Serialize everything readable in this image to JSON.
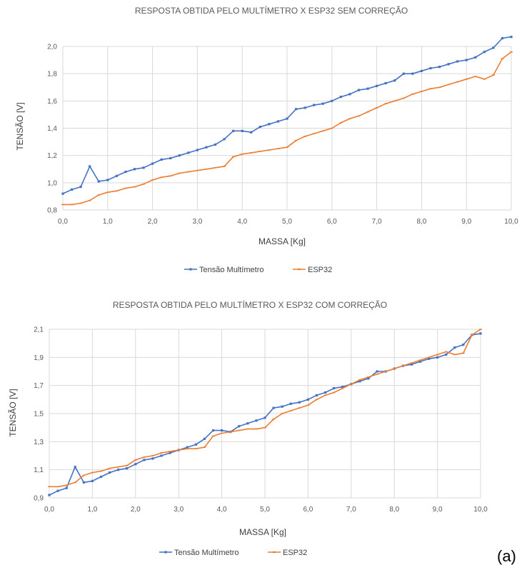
{
  "caption": "(a)",
  "chart_data": [
    {
      "type": "line",
      "title": "RESPOSTA OBTIDA PELO MULTÍMETRO X ESP32 SEM CORREÇÃO",
      "xlabel": "MASSA [Kg]",
      "ylabel": "TENSÃO [V]",
      "xlim": [
        0,
        10
      ],
      "ylim": [
        0.8,
        2.0
      ],
      "xticks": [
        "0,0",
        "1,0",
        "2,0",
        "3,0",
        "4,0",
        "5,0",
        "6,0",
        "7,0",
        "8,0",
        "9,0",
        "10,0"
      ],
      "yticks": [
        "0,8",
        "1,0",
        "1,2",
        "1,4",
        "1,6",
        "1,8",
        "2,0"
      ],
      "grid": true,
      "legend": "bottom",
      "x": [
        0,
        0.2,
        0.4,
        0.6,
        0.8,
        1.0,
        1.2,
        1.4,
        1.6,
        1.8,
        2.0,
        2.2,
        2.4,
        2.6,
        2.8,
        3.0,
        3.2,
        3.4,
        3.6,
        3.8,
        4.0,
        4.2,
        4.4,
        4.6,
        4.8,
        5.0,
        5.2,
        5.4,
        5.6,
        5.8,
        6.0,
        6.2,
        6.4,
        6.6,
        6.8,
        7.0,
        7.2,
        7.4,
        7.6,
        7.8,
        8.0,
        8.2,
        8.4,
        8.6,
        8.8,
        9.0,
        9.2,
        9.4,
        9.6,
        9.8,
        10.0
      ],
      "series": [
        {
          "name": "Tensão Multímetro",
          "color": "#4472c4",
          "values": [
            0.92,
            0.95,
            0.97,
            1.12,
            1.01,
            1.02,
            1.05,
            1.08,
            1.1,
            1.11,
            1.14,
            1.17,
            1.18,
            1.2,
            1.22,
            1.24,
            1.26,
            1.28,
            1.32,
            1.38,
            1.38,
            1.37,
            1.41,
            1.43,
            1.45,
            1.47,
            1.54,
            1.55,
            1.57,
            1.58,
            1.6,
            1.63,
            1.65,
            1.68,
            1.69,
            1.71,
            1.73,
            1.75,
            1.8,
            1.8,
            1.82,
            1.84,
            1.85,
            1.87,
            1.89,
            1.9,
            1.92,
            1.96,
            1.99,
            2.06,
            2.07
          ]
        },
        {
          "name": "ESP32",
          "color": "#ed7d31",
          "values": [
            0.84,
            0.84,
            0.85,
            0.87,
            0.91,
            0.93,
            0.94,
            0.96,
            0.97,
            0.99,
            1.02,
            1.04,
            1.05,
            1.07,
            1.08,
            1.09,
            1.1,
            1.11,
            1.12,
            1.19,
            1.21,
            1.22,
            1.23,
            1.24,
            1.25,
            1.26,
            1.31,
            1.34,
            1.36,
            1.38,
            1.4,
            1.44,
            1.47,
            1.49,
            1.52,
            1.55,
            1.58,
            1.6,
            1.62,
            1.65,
            1.67,
            1.69,
            1.7,
            1.72,
            1.74,
            1.76,
            1.78,
            1.76,
            1.79,
            1.91,
            1.96
          ]
        }
      ]
    },
    {
      "type": "line",
      "title": "RESPOSTA OBTIDA PELO MULTÍMETRO X ESP32 COM CORREÇÃO",
      "xlabel": "MASSA [Kg]",
      "ylabel": "TENSÃO [V]",
      "xlim": [
        0,
        10
      ],
      "ylim": [
        0.9,
        2.1
      ],
      "xticks": [
        "0,0",
        "1,0",
        "2,0",
        "3,0",
        "4,0",
        "5,0",
        "6,0",
        "7,0",
        "8,0",
        "9,0",
        "10,0"
      ],
      "yticks": [
        "0,9",
        "1,1",
        "1,3",
        "1,5",
        "1,7",
        "1,9",
        "2,1"
      ],
      "grid": true,
      "legend": "bottom",
      "x": [
        0,
        0.2,
        0.4,
        0.6,
        0.8,
        1.0,
        1.2,
        1.4,
        1.6,
        1.8,
        2.0,
        2.2,
        2.4,
        2.6,
        2.8,
        3.0,
        3.2,
        3.4,
        3.6,
        3.8,
        4.0,
        4.2,
        4.4,
        4.6,
        4.8,
        5.0,
        5.2,
        5.4,
        5.6,
        5.8,
        6.0,
        6.2,
        6.4,
        6.6,
        6.8,
        7.0,
        7.2,
        7.4,
        7.6,
        7.8,
        8.0,
        8.2,
        8.4,
        8.6,
        8.8,
        9.0,
        9.2,
        9.4,
        9.6,
        9.8,
        10.0
      ],
      "series": [
        {
          "name": "Tensão Multímetro",
          "color": "#4472c4",
          "values": [
            0.92,
            0.95,
            0.97,
            1.12,
            1.01,
            1.02,
            1.05,
            1.08,
            1.1,
            1.11,
            1.14,
            1.17,
            1.18,
            1.2,
            1.22,
            1.24,
            1.26,
            1.28,
            1.32,
            1.38,
            1.38,
            1.37,
            1.41,
            1.43,
            1.45,
            1.47,
            1.54,
            1.55,
            1.57,
            1.58,
            1.6,
            1.63,
            1.65,
            1.68,
            1.69,
            1.71,
            1.73,
            1.75,
            1.8,
            1.8,
            1.82,
            1.84,
            1.85,
            1.87,
            1.89,
            1.9,
            1.92,
            1.97,
            1.99,
            2.06,
            2.07
          ]
        },
        {
          "name": "ESP32",
          "color": "#ed7d31",
          "values": [
            0.98,
            0.98,
            0.99,
            1.01,
            1.06,
            1.08,
            1.09,
            1.11,
            1.12,
            1.13,
            1.17,
            1.19,
            1.2,
            1.22,
            1.23,
            1.24,
            1.25,
            1.25,
            1.26,
            1.34,
            1.36,
            1.37,
            1.38,
            1.39,
            1.39,
            1.4,
            1.46,
            1.5,
            1.52,
            1.54,
            1.56,
            1.6,
            1.63,
            1.65,
            1.68,
            1.71,
            1.74,
            1.76,
            1.78,
            1.8,
            1.82,
            1.84,
            1.86,
            1.88,
            1.9,
            1.92,
            1.94,
            1.92,
            1.93,
            2.06,
            2.1
          ]
        }
      ]
    }
  ]
}
